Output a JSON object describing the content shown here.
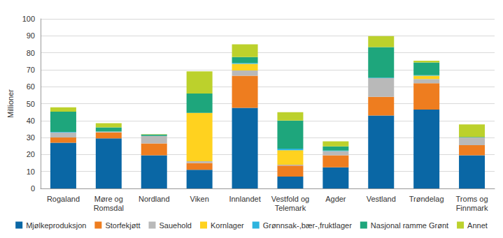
{
  "chart_data": {
    "type": "bar",
    "y_label": "Millioner",
    "categories": [
      "Rogaland",
      "Møre og\nRomsdal",
      "Nordland",
      "Viken",
      "Innlandet",
      "Vestfold og\nTelemark",
      "Agder",
      "Vestland",
      "Trøndelag",
      "Troms og\nFinnmark"
    ],
    "series": [
      {
        "name": "Mjølkeproduksjon",
        "color": "#0a67a5",
        "values": [
          27,
          29.5,
          19.5,
          11,
          47.5,
          7,
          12.5,
          43,
          46.5,
          19.5
        ]
      },
      {
        "name": "Storfekjøtt",
        "color": "#ee7d1f",
        "values": [
          3,
          3.5,
          7,
          4,
          19,
          6.5,
          7,
          11,
          15.5,
          6
        ]
      },
      {
        "name": "Sauehold",
        "color": "#b9b9b9",
        "values": [
          3,
          0.5,
          4.5,
          1,
          3,
          0.5,
          2.5,
          11,
          2.5,
          4.5
        ]
      },
      {
        "name": "Kornlager",
        "color": "#ffd21f",
        "values": [
          0,
          0,
          0,
          28.5,
          4,
          8.5,
          0,
          0,
          2,
          0
        ]
      },
      {
        "name": "Grønnsak-,bær-,fruktlager",
        "color": "#2db4de",
        "values": [
          0.3,
          0,
          0,
          0,
          0.5,
          1,
          0.3,
          0.3,
          0.3,
          0
        ]
      },
      {
        "name": "Nasjonal ramme Grønt",
        "color": "#1ea67c",
        "values": [
          12,
          2.5,
          0.8,
          11.5,
          3.5,
          16.5,
          2.5,
          18,
          7.5,
          0.3
        ]
      },
      {
        "name": "Annet",
        "color": "#bcd12c",
        "values": [
          2.5,
          2.5,
          0.2,
          13,
          7.5,
          5,
          3,
          6.5,
          1,
          7.5
        ]
      }
    ],
    "ylim": [
      0,
      100
    ],
    "yticks": [
      0,
      10,
      20,
      30,
      40,
      50,
      60,
      70,
      80,
      90,
      100
    ],
    "stacked": true,
    "grid": true,
    "legend": "bottom"
  }
}
